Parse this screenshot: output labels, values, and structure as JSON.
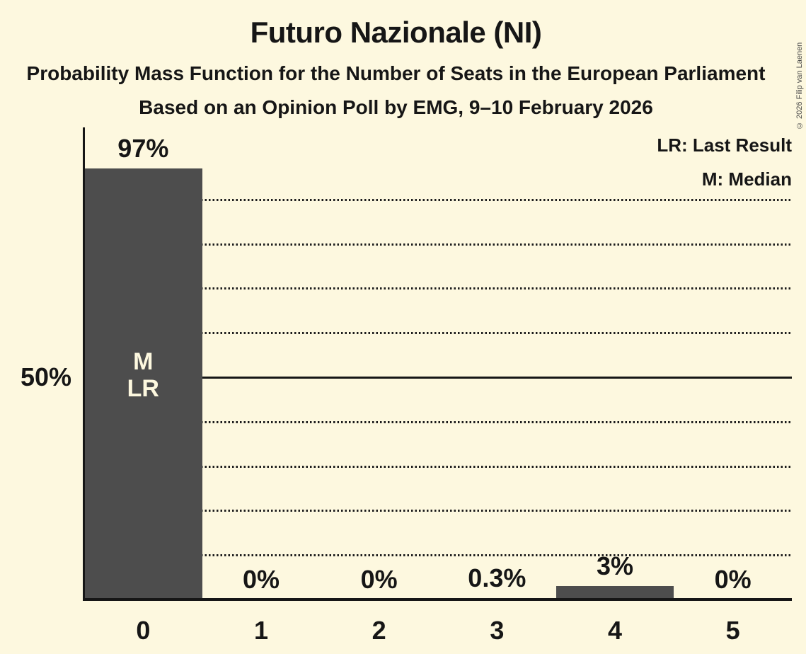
{
  "title": "Futuro Nazionale (NI)",
  "subtitle1": "Probability Mass Function for the Number of Seats in the European Parliament",
  "subtitle2": "Based on an Opinion Poll by EMG, 9–10 February 2026",
  "copyright": "© 2026 Filip van Laenen",
  "legend": {
    "last_result": "LR: Last Result",
    "median": "M: Median"
  },
  "y_axis": {
    "tick_label": "50%",
    "tick_value": 50
  },
  "chart_data": {
    "type": "bar",
    "title": "Futuro Nazionale (NI)",
    "subtitle": "Probability Mass Function for the Number of Seats in the European Parliament",
    "source": "Based on an Opinion Poll by EMG, 9–10 February 2026",
    "categories": [
      "0",
      "1",
      "2",
      "3",
      "4",
      "5"
    ],
    "values": [
      97,
      0,
      0,
      0.3,
      3,
      0
    ],
    "value_labels": [
      "97%",
      "0%",
      "0%",
      "0.3%",
      "3%",
      "0%"
    ],
    "xlabel": "",
    "ylabel": "",
    "ylim": [
      0,
      100
    ],
    "gridlines_pct": [
      10,
      20,
      30,
      40,
      50,
      60,
      70,
      80,
      90
    ],
    "solid_line_pct": 50,
    "legend_position": "top-right",
    "grid": "dotted-horizontal",
    "median_category": "0",
    "last_result_category": "0",
    "bar_annotation": {
      "category_index": 0,
      "lines": [
        "M",
        "LR"
      ]
    },
    "colors": {
      "background": "#FDF8DF",
      "bar": "#4D4D4D",
      "text": "#161616",
      "annotation_text": "#FDF8DF",
      "copyright_text": "#4A4A49"
    }
  }
}
